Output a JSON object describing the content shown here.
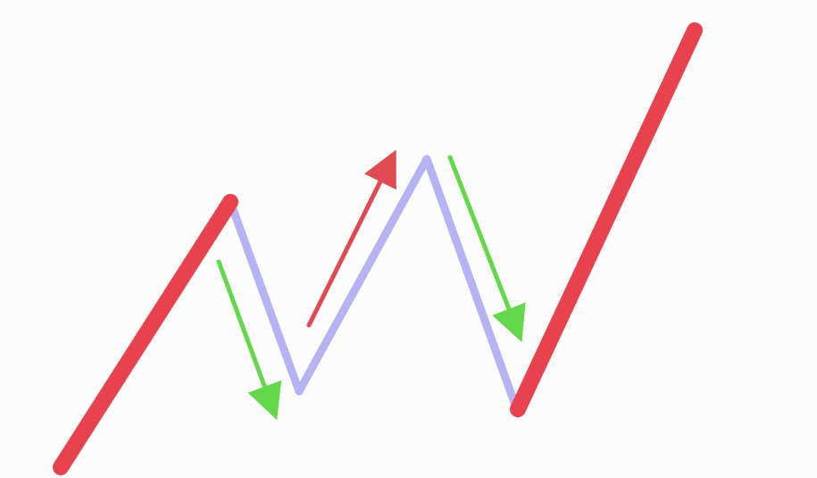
{
  "diagram": {
    "background": "#ffffff",
    "colors": {
      "trend_line": "#e8424e",
      "correction_line": "#b7b3f2",
      "up_arrow": "#e04a52",
      "down_arrow": "#63d84a"
    }
  }
}
